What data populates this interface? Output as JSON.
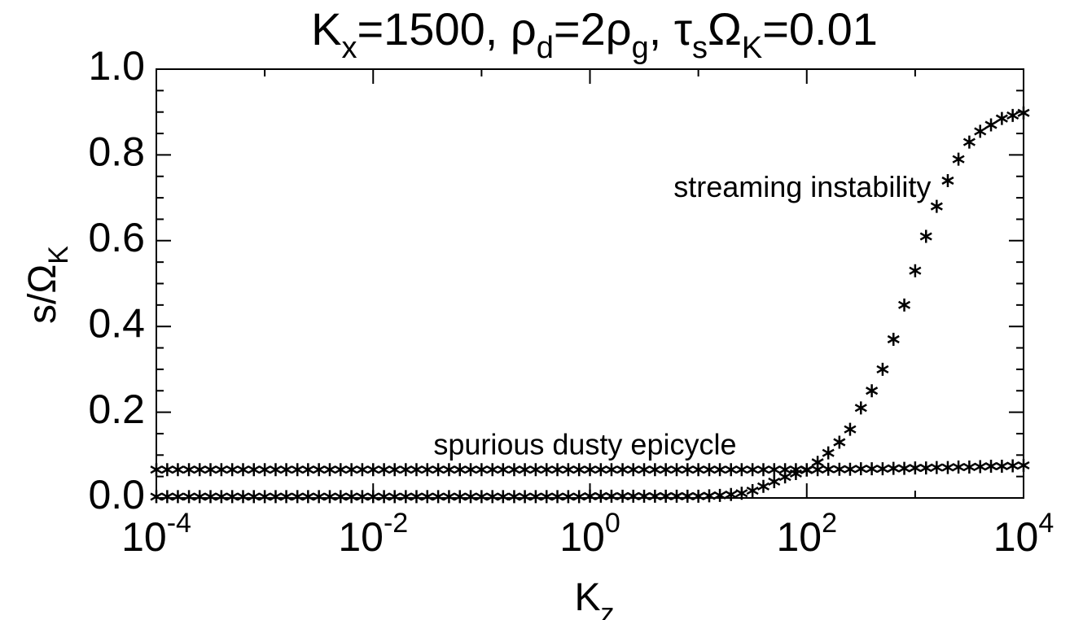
{
  "chart_data": {
    "type": "scatter",
    "title": [
      "K",
      "x",
      "=1500, ρ",
      "d",
      "=2ρ",
      "g",
      ", τ",
      "s",
      "Ω",
      "K",
      "=0.01"
    ],
    "xlabel": [
      "K",
      "z"
    ],
    "ylabel": [
      "s/Ω",
      "K"
    ],
    "xscale": "log",
    "xlim": [
      0.0001,
      10000
    ],
    "ylim": [
      0,
      1.0
    ],
    "xticks": [
      {
        "value": 0.0001,
        "label": [
          "10",
          "-4"
        ]
      },
      {
        "value": 0.01,
        "label": [
          "10",
          "-2"
        ]
      },
      {
        "value": 1,
        "label": [
          "10",
          "0"
        ]
      },
      {
        "value": 100,
        "label": [
          "10",
          "2"
        ]
      },
      {
        "value": 10000,
        "label": [
          "10",
          "4"
        ]
      }
    ],
    "xminorticks": [
      0.001,
      0.1,
      10,
      1000
    ],
    "yticks": [
      {
        "value": 0,
        "label": "0.0"
      },
      0.2,
      0.4,
      0.6,
      0.8,
      {
        "value": 1,
        "label": "1.0"
      }
    ],
    "yminorticks": [
      0.05,
      0.1,
      0.15,
      0.25,
      0.3,
      0.35,
      0.45,
      0.5,
      0.55,
      0.65,
      0.7,
      0.75,
      0.85,
      0.9,
      0.95
    ],
    "annotations": [
      {
        "text": "streaming instability",
        "x": 1400,
        "y": 0.72
      },
      {
        "text": "spurious dusty epicycle",
        "x": 0.9,
        "y": 0.12
      }
    ],
    "x": [
      0.0001,
      0.000126,
      0.000158,
      0.0002,
      0.000251,
      0.000316,
      0.000398,
      0.000501,
      0.000631,
      0.000794,
      0.001,
      0.00126,
      0.00158,
      0.002,
      0.00251,
      0.00316,
      0.00398,
      0.00501,
      0.00631,
      0.00794,
      0.01,
      0.0126,
      0.0158,
      0.02,
      0.0251,
      0.0316,
      0.0398,
      0.0501,
      0.0631,
      0.0794,
      0.1,
      0.126,
      0.158,
      0.2,
      0.251,
      0.316,
      0.398,
      0.501,
      0.631,
      0.794,
      1,
      1.26,
      1.58,
      2,
      2.51,
      3.16,
      3.98,
      5.01,
      6.31,
      7.94,
      10,
      12.6,
      15.8,
      20,
      25.1,
      31.6,
      39.8,
      50.1,
      63.1,
      79.4,
      100,
      126,
      158,
      200,
      251,
      316,
      398,
      501,
      631,
      794,
      1000,
      1260,
      1580,
      2000,
      2510,
      3160,
      3980,
      5010,
      6310,
      7940,
      10000
    ],
    "series": [
      {
        "name": "epicycle",
        "color": "#000000",
        "values": [
          0.066,
          0.066,
          0.066,
          0.066,
          0.066,
          0.066,
          0.066,
          0.066,
          0.066,
          0.066,
          0.066,
          0.066,
          0.066,
          0.066,
          0.066,
          0.066,
          0.066,
          0.066,
          0.066,
          0.066,
          0.066,
          0.066,
          0.066,
          0.066,
          0.066,
          0.066,
          0.066,
          0.066,
          0.066,
          0.066,
          0.066,
          0.066,
          0.066,
          0.066,
          0.066,
          0.066,
          0.066,
          0.066,
          0.066,
          0.066,
          0.066,
          0.066,
          0.066,
          0.066,
          0.066,
          0.066,
          0.066,
          0.066,
          0.066,
          0.066,
          0.066,
          0.066,
          0.066,
          0.066,
          0.066,
          0.066,
          0.066,
          0.066,
          0.066,
          0.066,
          0.066,
          0.066,
          0.067,
          0.067,
          0.067,
          0.068,
          0.068,
          0.068,
          0.069,
          0.069,
          0.07,
          0.07,
          0.071,
          0.071,
          0.072,
          0.072,
          0.073,
          0.074,
          0.074,
          0.075,
          0.076
        ]
      },
      {
        "name": "streaming",
        "color": "#000000",
        "values": [
          0.003,
          0.003,
          0.003,
          0.003,
          0.003,
          0.003,
          0.003,
          0.003,
          0.003,
          0.003,
          0.003,
          0.003,
          0.003,
          0.003,
          0.003,
          0.003,
          0.003,
          0.003,
          0.003,
          0.003,
          0.003,
          0.003,
          0.003,
          0.003,
          0.003,
          0.003,
          0.003,
          0.003,
          0.003,
          0.003,
          0.003,
          0.003,
          0.003,
          0.003,
          0.003,
          0.003,
          0.003,
          0.003,
          0.003,
          0.003,
          0.004,
          0.004,
          0.004,
          0.004,
          0.004,
          0.004,
          0.004,
          0.004,
          0.004,
          0.004,
          0.004,
          0.005,
          0.006,
          0.008,
          0.011,
          0.017,
          0.027,
          0.038,
          0.049,
          0.057,
          0.065,
          0.083,
          0.105,
          0.13,
          0.16,
          0.21,
          0.25,
          0.3,
          0.37,
          0.45,
          0.53,
          0.61,
          0.68,
          0.74,
          0.79,
          0.83,
          0.855,
          0.87,
          0.885,
          0.892,
          0.898
        ]
      }
    ]
  }
}
